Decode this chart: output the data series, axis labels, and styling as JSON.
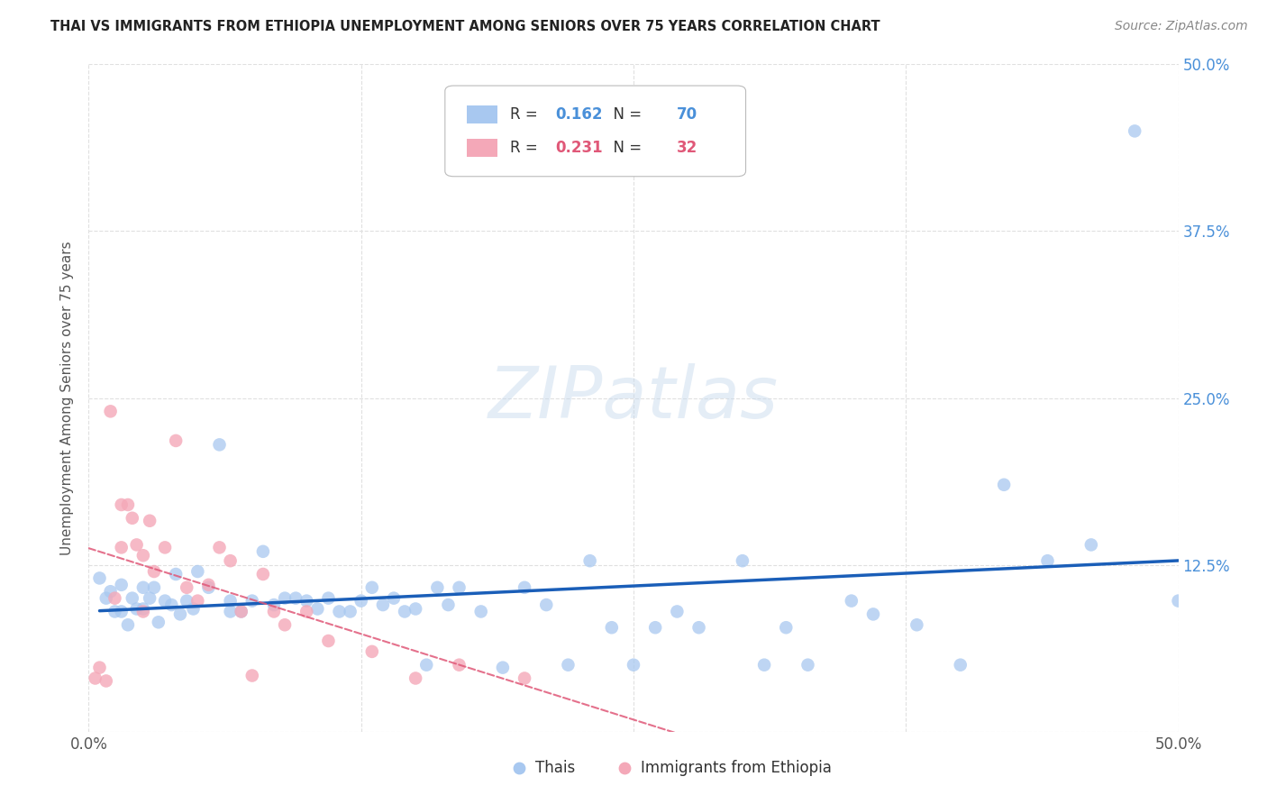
{
  "title": "THAI VS IMMIGRANTS FROM ETHIOPIA UNEMPLOYMENT AMONG SENIORS OVER 75 YEARS CORRELATION CHART",
  "source": "Source: ZipAtlas.com",
  "ylabel": "Unemployment Among Seniors over 75 years",
  "xlim": [
    0.0,
    0.5
  ],
  "ylim": [
    0.0,
    0.5
  ],
  "xtick_positions": [
    0.0,
    0.125,
    0.25,
    0.375,
    0.5
  ],
  "xtick_labels": [
    "0.0%",
    "",
    "",
    "",
    "50.0%"
  ],
  "ytick_positions": [
    0.0,
    0.125,
    0.25,
    0.375,
    0.5
  ],
  "ytick_labels": [
    "",
    "12.5%",
    "25.0%",
    "37.5%",
    "50.0%"
  ],
  "watermark": "ZIPatlas",
  "thai_color": "#a8c8f0",
  "ethiopia_color": "#f4a8b8",
  "thai_line_color": "#1a5eb8",
  "ethiopia_line_color": "#e05878",
  "legend_text_thai_color": "#4a90d9",
  "legend_text_eth_color": "#e05878",
  "R_thai": 0.162,
  "N_thai": 70,
  "R_ethiopia": 0.231,
  "N_ethiopia": 32,
  "thai_x": [
    0.005,
    0.008,
    0.01,
    0.012,
    0.015,
    0.015,
    0.018,
    0.02,
    0.022,
    0.025,
    0.025,
    0.028,
    0.03,
    0.032,
    0.035,
    0.038,
    0.04,
    0.042,
    0.045,
    0.048,
    0.05,
    0.055,
    0.06,
    0.065,
    0.065,
    0.07,
    0.075,
    0.08,
    0.085,
    0.09,
    0.095,
    0.1,
    0.105,
    0.11,
    0.115,
    0.12,
    0.125,
    0.13,
    0.135,
    0.14,
    0.145,
    0.15,
    0.155,
    0.16,
    0.165,
    0.17,
    0.18,
    0.19,
    0.2,
    0.21,
    0.22,
    0.23,
    0.24,
    0.25,
    0.26,
    0.27,
    0.28,
    0.3,
    0.31,
    0.32,
    0.33,
    0.35,
    0.36,
    0.38,
    0.4,
    0.42,
    0.44,
    0.46,
    0.48,
    0.5
  ],
  "thai_y": [
    0.115,
    0.1,
    0.105,
    0.09,
    0.11,
    0.09,
    0.08,
    0.1,
    0.092,
    0.108,
    0.092,
    0.1,
    0.108,
    0.082,
    0.098,
    0.095,
    0.118,
    0.088,
    0.098,
    0.092,
    0.12,
    0.108,
    0.215,
    0.09,
    0.098,
    0.09,
    0.098,
    0.135,
    0.095,
    0.1,
    0.1,
    0.098,
    0.092,
    0.1,
    0.09,
    0.09,
    0.098,
    0.108,
    0.095,
    0.1,
    0.09,
    0.092,
    0.05,
    0.108,
    0.095,
    0.108,
    0.09,
    0.048,
    0.108,
    0.095,
    0.05,
    0.128,
    0.078,
    0.05,
    0.078,
    0.09,
    0.078,
    0.128,
    0.05,
    0.078,
    0.05,
    0.098,
    0.088,
    0.08,
    0.05,
    0.185,
    0.128,
    0.14,
    0.45,
    0.098
  ],
  "ethiopia_x": [
    0.003,
    0.005,
    0.008,
    0.01,
    0.012,
    0.015,
    0.015,
    0.018,
    0.02,
    0.022,
    0.025,
    0.025,
    0.028,
    0.03,
    0.035,
    0.04,
    0.045,
    0.05,
    0.055,
    0.06,
    0.065,
    0.07,
    0.075,
    0.08,
    0.085,
    0.09,
    0.1,
    0.11,
    0.13,
    0.15,
    0.17,
    0.2
  ],
  "ethiopia_y": [
    0.04,
    0.048,
    0.038,
    0.24,
    0.1,
    0.17,
    0.138,
    0.17,
    0.16,
    0.14,
    0.132,
    0.09,
    0.158,
    0.12,
    0.138,
    0.218,
    0.108,
    0.098,
    0.11,
    0.138,
    0.128,
    0.09,
    0.042,
    0.118,
    0.09,
    0.08,
    0.09,
    0.068,
    0.06,
    0.04,
    0.05,
    0.04
  ],
  "background_color": "#ffffff",
  "grid_color": "#e0e0e0"
}
